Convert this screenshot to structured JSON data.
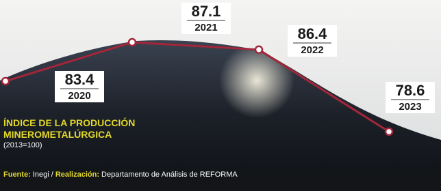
{
  "chart_data": {
    "type": "line",
    "title": "ÍNDICE DE LA PRODUCCIÓN MINEROMETALÚRGICA",
    "subtitle": "(2013=100)",
    "source": "Fuente: Inegi / Realización: Departamento de Análisis de REFORMA",
    "categories": [
      "2020",
      "2021",
      "2022",
      "2023"
    ],
    "values": [
      83.4,
      87.1,
      86.4,
      78.6
    ],
    "color": "#a3263a"
  }
}
